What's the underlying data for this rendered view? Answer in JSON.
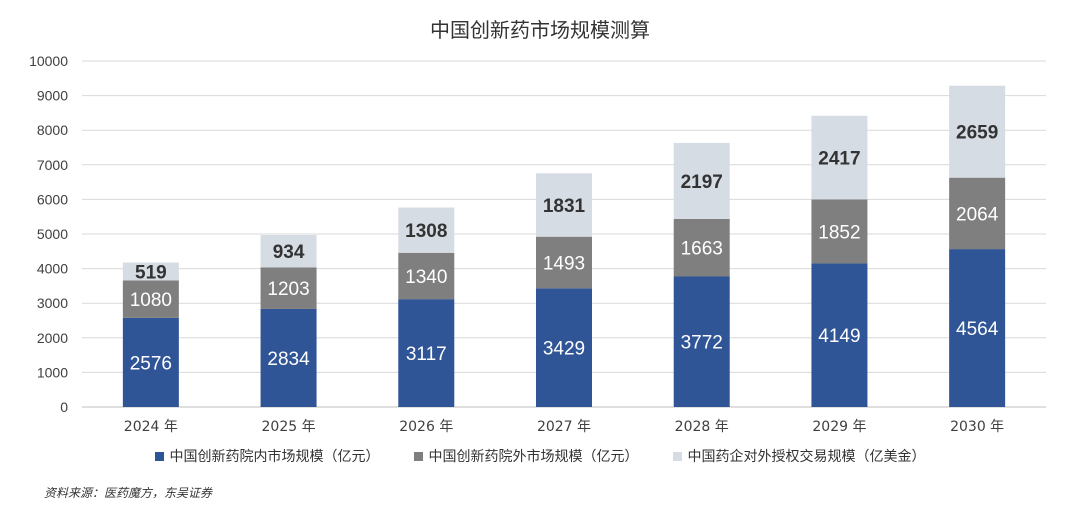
{
  "chart_data": {
    "type": "bar",
    "stacked": true,
    "title": "中国创新药市场规模测算",
    "categories": [
      "2024 年",
      "2025 年",
      "2026 年",
      "2027 年",
      "2028 年",
      "2029 年",
      "2030 年"
    ],
    "series": [
      {
        "name": "中国创新药院内市场规模（亿元）",
        "color": "#2f5597",
        "label_color": "#ffffff",
        "label_bold": false,
        "values": [
          2576,
          2834,
          3117,
          3429,
          3772,
          4149,
          4564
        ]
      },
      {
        "name": "中国创新药院外市场规模（亿元）",
        "color": "#7f7f7f",
        "label_color": "#ffffff",
        "label_bold": false,
        "values": [
          1080,
          1203,
          1340,
          1493,
          1663,
          1852,
          2064
        ]
      },
      {
        "name": "中国药企对外授权交易规模（亿美金）",
        "color": "#d6dce4",
        "label_color": "#333333",
        "label_bold": true,
        "values": [
          519,
          934,
          1308,
          1831,
          2197,
          2417,
          2659
        ]
      }
    ],
    "ylim": [
      0,
      10000
    ],
    "yticks": [
      0,
      1000,
      2000,
      3000,
      4000,
      5000,
      6000,
      7000,
      8000,
      9000,
      10000
    ],
    "grid": true,
    "legend_position": "bottom",
    "xlabel": "",
    "ylabel": ""
  },
  "source": "资料来源：医药魔方，东吴证券"
}
